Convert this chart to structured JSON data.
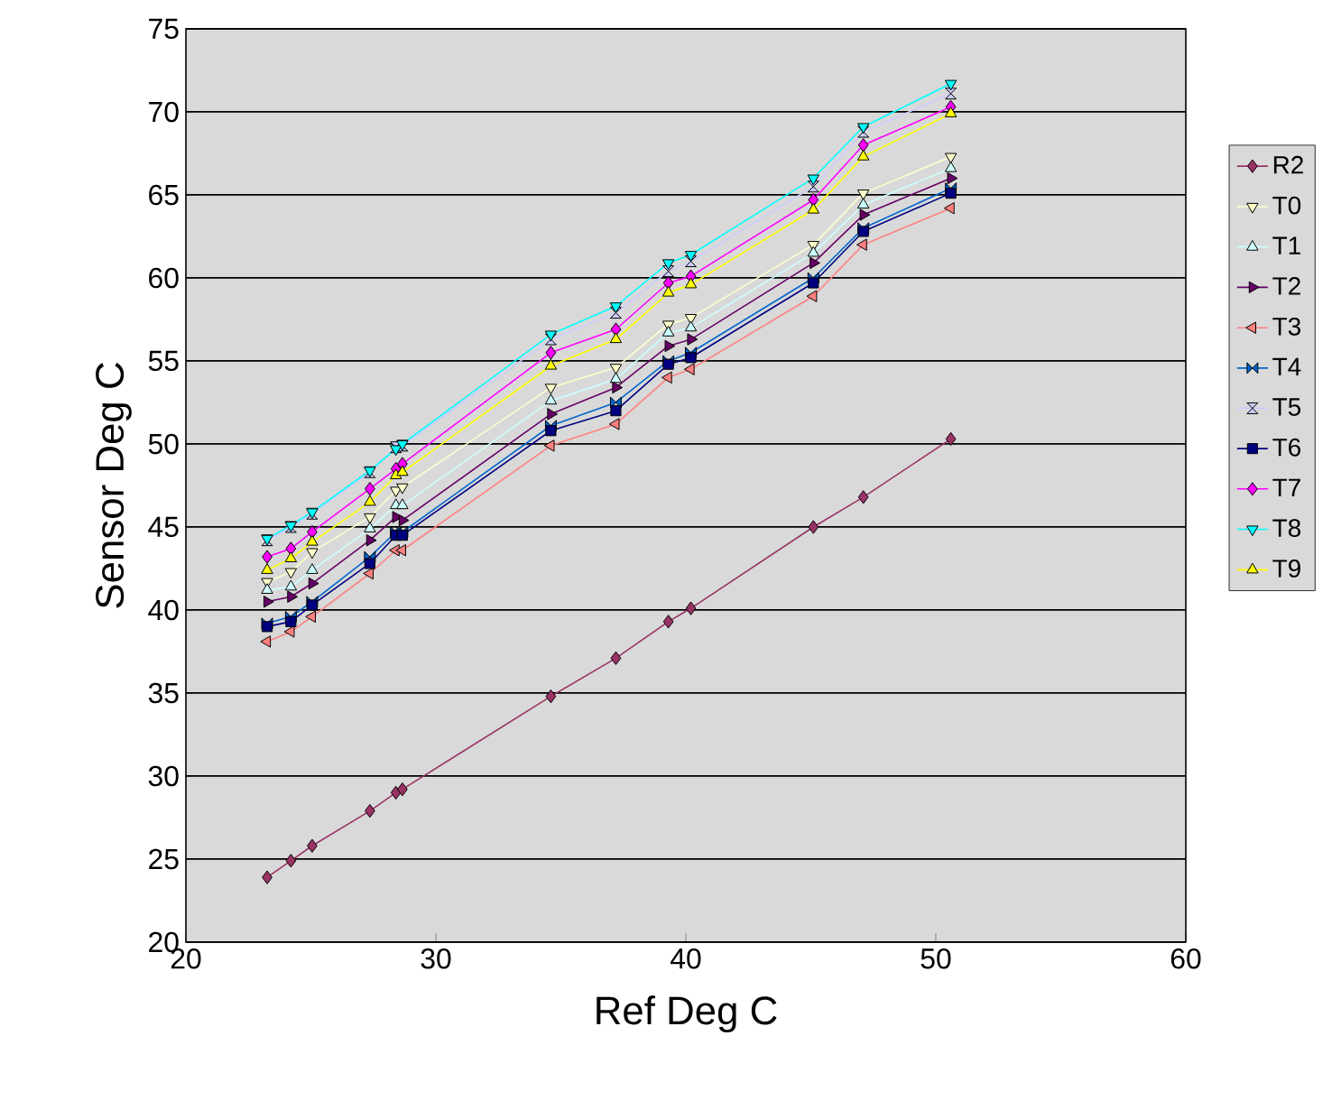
{
  "chart_data": {
    "type": "line",
    "xlabel": "Ref Deg C",
    "ylabel": "Sensor Deg C",
    "x": [
      23.25,
      24.2,
      25.05,
      27.36,
      28.4,
      28.66,
      34.6,
      37.2,
      39.3,
      40.2,
      45.1,
      47.1,
      50.6
    ],
    "xlim": [
      20,
      60
    ],
    "xticks": [
      20,
      30,
      40,
      50,
      60
    ],
    "ylim": [
      20,
      75
    ],
    "yticks": [
      20,
      25,
      30,
      35,
      40,
      45,
      50,
      55,
      60,
      65,
      70,
      75
    ],
    "grid": "y",
    "legend": "right",
    "line_style": "solid",
    "series": [
      {
        "name": "R2",
        "color": "#993366",
        "marker": "diamond",
        "values": [
          23.9,
          24.9,
          25.8,
          27.9,
          29.0,
          29.2,
          34.8,
          37.1,
          39.3,
          40.1,
          45.0,
          46.8,
          50.3
        ]
      },
      {
        "name": "T0",
        "color": "#ffffcc",
        "marker": "triangle-down",
        "values": [
          41.7,
          42.3,
          43.5,
          45.6,
          47.2,
          47.4,
          53.4,
          54.6,
          57.2,
          57.6,
          62.0,
          65.1,
          67.3
        ]
      },
      {
        "name": "T1",
        "color": "#ccffff",
        "marker": "triangle",
        "values": [
          41.2,
          41.4,
          42.4,
          44.9,
          46.3,
          46.3,
          52.6,
          53.9,
          56.7,
          57.0,
          61.5,
          64.4,
          66.6
        ]
      },
      {
        "name": "T2",
        "color": "#660066",
        "marker": "triangle-right",
        "values": [
          40.5,
          40.8,
          41.6,
          44.2,
          45.6,
          45.4,
          51.8,
          53.4,
          55.9,
          56.3,
          60.9,
          63.8,
          66.0
        ]
      },
      {
        "name": "T3",
        "color": "#ff8080",
        "marker": "triangle-left",
        "values": [
          38.1,
          38.7,
          39.6,
          42.2,
          43.6,
          43.6,
          49.9,
          51.2,
          54.0,
          54.5,
          58.9,
          62.0,
          64.2
        ]
      },
      {
        "name": "T4",
        "color": "#0066cc",
        "marker": "diamond-bowtie",
        "values": [
          39.2,
          39.6,
          40.5,
          43.2,
          44.7,
          44.7,
          51.1,
          52.5,
          55.0,
          55.5,
          60.0,
          63.0,
          65.4
        ]
      },
      {
        "name": "T5",
        "color": "#ccccff",
        "marker": "diamond-hourglass",
        "values": [
          44.2,
          45.0,
          45.8,
          48.3,
          49.8,
          49.9,
          56.3,
          57.9,
          60.4,
          61.0,
          65.5,
          68.8,
          71.1
        ]
      },
      {
        "name": "T6",
        "color": "#000080",
        "marker": "square",
        "values": [
          39.0,
          39.3,
          40.3,
          42.8,
          44.5,
          44.5,
          50.8,
          52.0,
          54.8,
          55.2,
          59.7,
          62.8,
          65.1
        ]
      },
      {
        "name": "T7",
        "color": "#ff00ff",
        "marker": "diamond",
        "values": [
          43.2,
          43.7,
          44.7,
          47.3,
          48.5,
          48.8,
          55.5,
          56.9,
          59.7,
          60.1,
          64.7,
          68.0,
          70.3
        ]
      },
      {
        "name": "T8",
        "color": "#00ffff",
        "marker": "triangle-down",
        "values": [
          44.3,
          45.1,
          45.9,
          48.4,
          49.7,
          50.0,
          56.6,
          58.3,
          60.9,
          61.4,
          66.0,
          69.1,
          71.7
        ]
      },
      {
        "name": "T9",
        "color": "#ffff00",
        "marker": "triangle",
        "values": [
          42.4,
          43.1,
          44.1,
          46.5,
          48.1,
          48.3,
          54.7,
          56.3,
          59.1,
          59.6,
          64.1,
          67.3,
          69.9
        ]
      }
    ]
  }
}
